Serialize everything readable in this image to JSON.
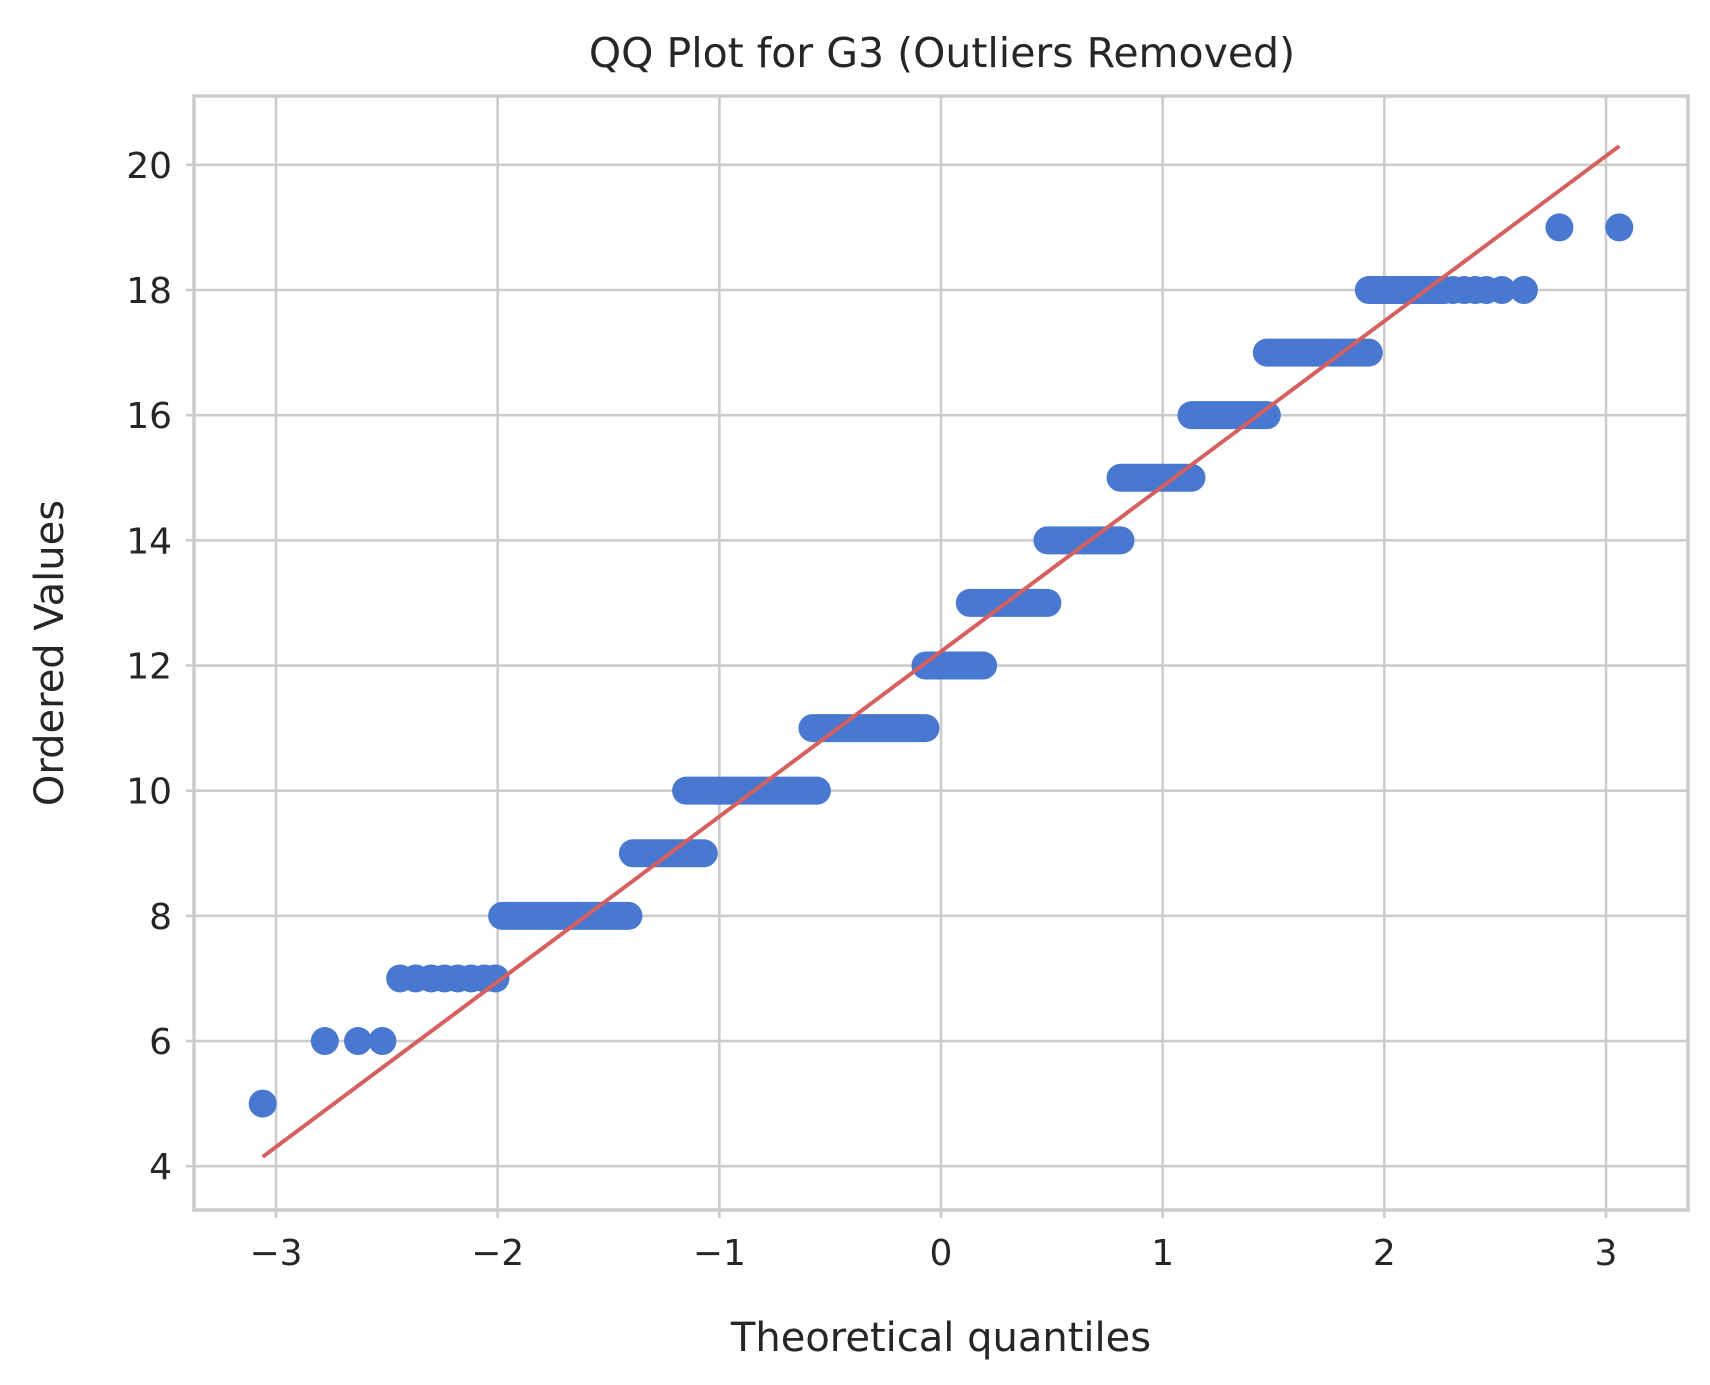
{
  "chart_data": {
    "type": "scatter",
    "title": "QQ Plot for G3 (Outliers Removed)",
    "xlabel": "Theoretical quantiles",
    "ylabel": "Ordered Values",
    "xlim": [
      -3.37,
      3.37
    ],
    "ylim": [
      3.3,
      21.1
    ],
    "xticks": [
      -3,
      -2,
      -1,
      0,
      1,
      2,
      3
    ],
    "xtick_labels": [
      "−3",
      "−2",
      "−1",
      "0",
      "1",
      "2",
      "3"
    ],
    "yticks": [
      4,
      6,
      8,
      10,
      12,
      14,
      16,
      18,
      20
    ],
    "ytick_labels": [
      "4",
      "6",
      "8",
      "10",
      "12",
      "14",
      "16",
      "18",
      "20"
    ],
    "grid": true,
    "marker_color": "#4878d0",
    "line_color": "#d65f5f",
    "series": [
      {
        "kind": "points",
        "runs": [
          {
            "y": 5,
            "x": [
              -3.06
            ]
          },
          {
            "y": 6,
            "x": [
              -2.78,
              -2.63,
              -2.52
            ]
          },
          {
            "y": 7,
            "x": [
              -2.44,
              -2.37,
              -2.3,
              -2.24,
              -2.18,
              -2.12,
              -2.06,
              -2.01
            ]
          },
          {
            "y": 8,
            "x_range": [
              -1.98,
              -1.41
            ]
          },
          {
            "y": 9,
            "x_range": [
              -1.39,
              -1.07
            ]
          },
          {
            "y": 10,
            "x_range": [
              -1.15,
              -0.56
            ]
          },
          {
            "y": 11,
            "x_range": [
              -0.58,
              -0.07
            ]
          },
          {
            "y": 12,
            "x_range": [
              -0.07,
              0.19
            ]
          },
          {
            "y": 13,
            "x_range": [
              0.13,
              0.48
            ]
          },
          {
            "y": 14,
            "x_range": [
              0.48,
              0.81
            ]
          },
          {
            "y": 15,
            "x_range": [
              0.81,
              1.13
            ]
          },
          {
            "y": 16,
            "x_range": [
              1.13,
              1.47
            ]
          },
          {
            "y": 17,
            "x_range": [
              1.47,
              1.93
            ]
          },
          {
            "y": 18,
            "x_range": [
              1.93,
              2.27
            ]
          },
          {
            "y": 18,
            "x": [
              2.31,
              2.36,
              2.41,
              2.46,
              2.53,
              2.63
            ]
          },
          {
            "y": 19,
            "x": [
              2.79,
              3.06
            ]
          }
        ]
      },
      {
        "kind": "fit-line",
        "x": [
          -3.06,
          3.06
        ],
        "y": [
          4.15,
          20.3
        ]
      }
    ]
  }
}
